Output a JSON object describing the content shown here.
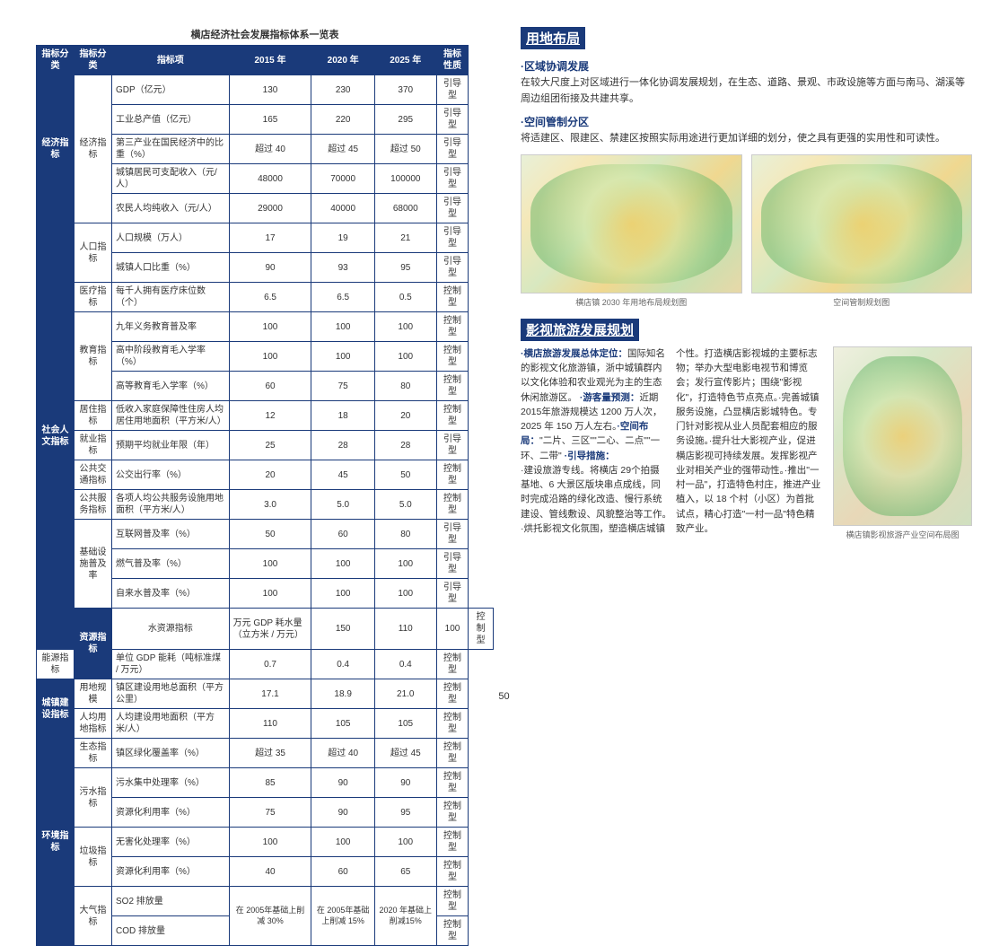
{
  "pageNumber": "50",
  "tableTitle": "横店经济社会发展指标体系一览表",
  "headers": [
    "指标分类",
    "指标分类",
    "指标项",
    "2015 年",
    "2020 年",
    "2025 年",
    "指标性质"
  ],
  "rows": [
    {
      "cat": "经济指标",
      "catRowspan": 5,
      "sub": "经济指标",
      "subRowspan": 5,
      "item": "GDP（亿元）",
      "y15": "130",
      "y20": "230",
      "y25": "370",
      "type": "引导型"
    },
    {
      "item": "工业总产值（亿元）",
      "y15": "165",
      "y20": "220",
      "y25": "295",
      "type": "引导型"
    },
    {
      "item": "第三产业在国民经济中的比重（%）",
      "y15": "超过 40",
      "y20": "超过 45",
      "y25": "超过 50",
      "type": "引导型"
    },
    {
      "item": "城镇居民可支配收入（元/人）",
      "y15": "48000",
      "y20": "70000",
      "y25": "100000",
      "type": "引导型"
    },
    {
      "item": "农民人均纯收入（元/人）",
      "y15": "29000",
      "y20": "40000",
      "y25": "68000",
      "type": "引导型"
    },
    {
      "cat": "社会人文指标",
      "catRowspan": 14,
      "sub": "人口指标",
      "subRowspan": 2,
      "item": "人口规模（万人）",
      "y15": "17",
      "y20": "19",
      "y25": "21",
      "type": "引导型"
    },
    {
      "item": "城镇人口比重（%）",
      "y15": "90",
      "y20": "93",
      "y25": "95",
      "type": "引导型"
    },
    {
      "sub": "医疗指标",
      "subRowspan": 1,
      "item": "每千人拥有医疗床位数（个）",
      "y15": "6.5",
      "y20": "6.5",
      "y25": "0.5",
      "type": "控制型"
    },
    {
      "sub": "教育指标",
      "subRowspan": 3,
      "item": "九年义务教育普及率",
      "y15": "100",
      "y20": "100",
      "y25": "100",
      "type": "控制型"
    },
    {
      "item": "高中阶段教育毛入学率（%）",
      "y15": "100",
      "y20": "100",
      "y25": "100",
      "type": "控制型"
    },
    {
      "item": "高等教育毛入学率（%）",
      "y15": "60",
      "y20": "75",
      "y25": "80",
      "type": "控制型"
    },
    {
      "sub": "居住指标",
      "subRowspan": 1,
      "item": "低收入家庭保障性住房人均居住用地面积（平方米/人）",
      "y15": "12",
      "y20": "18",
      "y25": "20",
      "type": "控制型"
    },
    {
      "sub": "就业指标",
      "subRowspan": 1,
      "item": "预期平均就业年限（年）",
      "y15": "25",
      "y20": "28",
      "y25": "28",
      "type": "引导型"
    },
    {
      "sub": "公共交通指标",
      "subRowspan": 1,
      "item": "公交出行率（%）",
      "y15": "20",
      "y20": "45",
      "y25": "50",
      "type": "控制型"
    },
    {
      "sub": "公共服务指标",
      "subRowspan": 1,
      "item": "各项人均公共服务设施用地面积（平方米/人）",
      "y15": "3.0",
      "y20": "5.0",
      "y25": "5.0",
      "type": "控制型"
    },
    {
      "sub": "基础设施普及率",
      "subRowspan": 3,
      "item": "互联网普及率（%）",
      "y15": "50",
      "y20": "60",
      "y25": "80",
      "type": "引导型"
    },
    {
      "item": "燃气普及率（%）",
      "y15": "100",
      "y20": "100",
      "y25": "100",
      "type": "引导型"
    },
    {
      "item": "自来水普及率（%）",
      "y15": "100",
      "y20": "100",
      "y25": "100",
      "type": "引导型"
    },
    {
      "cat": "资源指标",
      "catRowspan": 2,
      "sub": "水资源指标",
      "subRowspan": 1,
      "item": "万元 GDP 耗水量（立方米 / 万元）",
      "y15": "150",
      "y20": "110",
      "y25": "100",
      "type": "控制型"
    },
    {
      "sub": "能源指标",
      "subRowspan": 1,
      "item": "单位 GDP 能耗（吨标准煤 / 万元）",
      "y15": "0.7",
      "y20": "0.4",
      "y25": "0.4",
      "type": "控制型"
    },
    {
      "cat": "城镇建设指标",
      "catRowspan": 2,
      "sub": "用地规模",
      "subRowspan": 1,
      "item": "镇区建设用地总面积（平方公里）",
      "y15": "17.1",
      "y20": "18.9",
      "y25": "21.0",
      "type": "控制型"
    },
    {
      "sub": "人均用地指标",
      "subRowspan": 1,
      "item": "人均建设用地面积（平方米/人）",
      "y15": "110",
      "y20": "105",
      "y25": "105",
      "type": "控制型"
    },
    {
      "cat": "环境指标",
      "catRowspan": 8,
      "sub": "生态指标",
      "subRowspan": 1,
      "item": "镇区绿化覆盖率（%）",
      "y15": "超过 35",
      "y20": "超过 40",
      "y25": "超过 45",
      "type": "控制型"
    },
    {
      "sub": "污水指标",
      "subRowspan": 2,
      "item": "污水集中处理率（%）",
      "y15": "85",
      "y20": "90",
      "y25": "90",
      "type": "控制型"
    },
    {
      "item": "资源化利用率（%）",
      "y15": "75",
      "y20": "90",
      "y25": "95",
      "type": "控制型"
    },
    {
      "sub": "垃圾指标",
      "subRowspan": 2,
      "item": "无害化处理率（%）",
      "y15": "100",
      "y20": "100",
      "y25": "100",
      "type": "控制型"
    },
    {
      "item": "资源化利用率（%）",
      "y15": "40",
      "y20": "60",
      "y25": "65",
      "type": "控制型"
    },
    {
      "sub": "大气指标",
      "subRowspan": 2,
      "item": "SO2 排放量",
      "y15": "在 2005年基础上削减 30%",
      "y20": "在 2005年基础上削减 15%",
      "y25": "2020 年基础上削减15%",
      "type": "控制型"
    },
    {
      "item": "COD 排放量",
      "y15m": true,
      "type": "控制型"
    }
  ],
  "section1": {
    "title": "用地布局",
    "sub1": "·区域协调发展",
    "text1": "在较大尺度上对区域进行一体化协调发展规划，在生态、道路、景观、市政设施等方面与南马、湖溪等周边组团衔接及共建共享。",
    "sub2": "·空间管制分区",
    "text2": "将适建区、限建区、禁建区按照实际用途进行更加详细的划分，使之具有更强的实用性和可读性。",
    "map1Caption": "横店镇 2030 年用地布局规划图",
    "map2Caption": "空间管制规划图"
  },
  "section2": {
    "title": "影视旅游发展规划",
    "labels": {
      "positioning": "·横店旅游发展总体定位：",
      "forecast": "·游客量预测：",
      "layout": "·空间布局：",
      "measures": "·引导措施："
    },
    "bodyText": "国际知名的影视文化旅游镇，浙中城镇群内以文化体验和农业观光为主的生态休闲旅游区。 近期 2015年旅游规模达 1200 万人次，2025 年 150 万人左右。\"二片、三区\"\"二心、二点\"\"一环、二带\" ·建设旅游专线。将横店 29个拍摄基地、6 大景区版块串点成线，同时完成沿路的绿化改造、慢行系统建设、管线敷设、风貌整治等工作。·烘托影视文化氛围，塑造横店城镇个性。打造横店影视城的主要标志物；举办大型电影电视节和博览会；发行宣传影片；围绕\"影视化\"，打造特色节点亮点。·完善城镇服务设施，凸显横店影城特色。专门针对影视从业人员配套相应的服务设施。·提升壮大影视产业，促进横店影视可持续发展。发挥影视产业对相关产业的强带动性。·推出\"一村一品\"，打造特色村庄，推进产业植入，以 18 个村（小区）为首批试点，精心打造\"一村一品\"特色精致产业。",
    "mapCaption": "横店镇影视旅游产业空间布局图"
  }
}
